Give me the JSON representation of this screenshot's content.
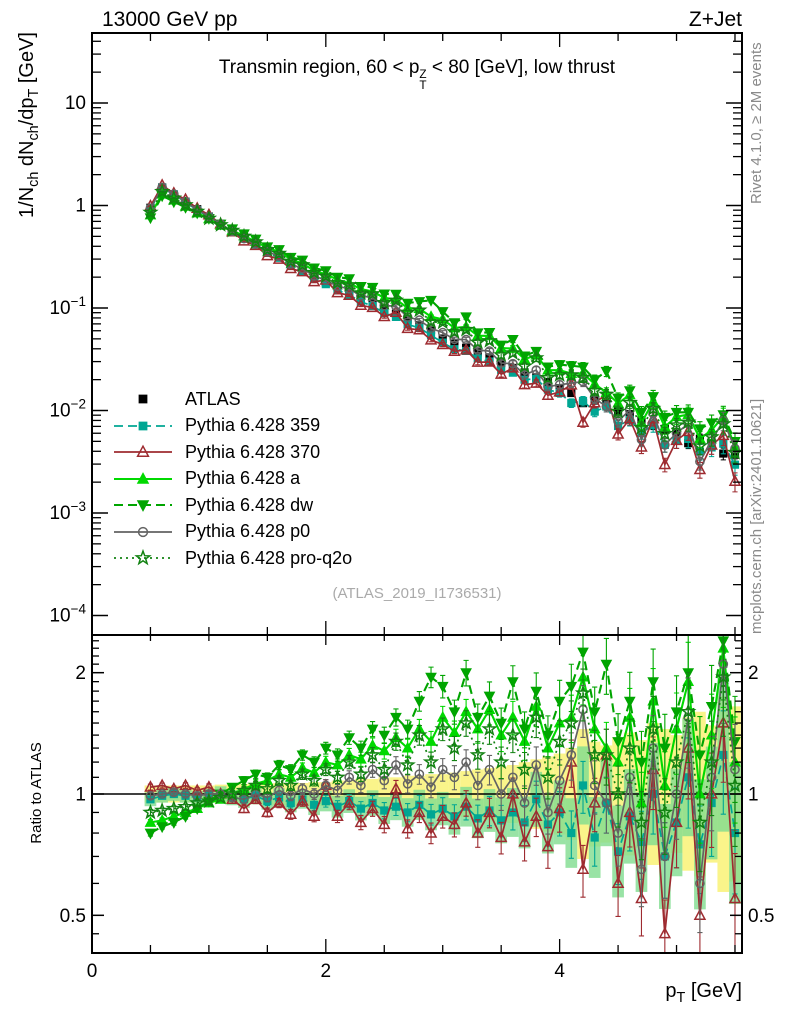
{
  "header": {
    "left": "13000 GeV pp",
    "right": "Z+Jet"
  },
  "title_segments": [
    {
      "t": "Transmin region, 60 < p"
    },
    {
      "stack": [
        "Z",
        "T"
      ]
    },
    {
      "t": " < 80 [GeV], low thrust"
    }
  ],
  "side_notes": {
    "top_right": "Rivet 4.1.0, ≥ 2M events",
    "bottom_right": "mcplots.cern.ch [arXiv:2401.10621]"
  },
  "watermark": "(ATLAS_2019_I1736531)",
  "colors": {
    "frame": "#000000",
    "band_yellow": "#faf48a",
    "band_green": "#7fdc8f",
    "unity_line": "#000000",
    "note_gray": "#8a8a8a",
    "watermark_gray": "#aaaaaa"
  },
  "axes": {
    "x": {
      "label_segments": [
        {
          "t": "p"
        },
        {
          "sub": "T"
        },
        {
          "t": " [GeV]"
        }
      ],
      "range": [
        0,
        5.56
      ],
      "major_ticks": [
        0,
        2,
        4
      ],
      "tick_labels": [
        "0",
        "2",
        "4"
      ],
      "minor_step": 0.5
    },
    "y_main": {
      "label_segments": [
        {
          "t": "1/N"
        },
        {
          "sub": "ch"
        },
        {
          "t": " dN"
        },
        {
          "sub": "ch"
        },
        {
          "t": "/dp"
        },
        {
          "sub": "T"
        },
        {
          "t": " [GeV]"
        }
      ],
      "scale": "log",
      "range": [
        6.5e-05,
        48
      ],
      "tick_labels": [
        {
          "value": 10,
          "text": "10"
        },
        {
          "value": 1,
          "text": "1"
        },
        {
          "value": 0.1,
          "base": "10",
          "exp": "−1"
        },
        {
          "value": 0.01,
          "base": "10",
          "exp": "−2"
        },
        {
          "value": 0.001,
          "base": "10",
          "exp": "−3"
        },
        {
          "value": 0.0001,
          "base": "10",
          "exp": "−4"
        }
      ]
    },
    "y_ratio": {
      "label": "Ratio to ATLAS",
      "scale": "log",
      "range": [
        0.403,
        2.48
      ],
      "major_ticks": [
        0.5,
        1,
        2
      ],
      "tick_labels": [
        "0.5",
        "1",
        "2"
      ]
    }
  },
  "chart_data": {
    "type": "line",
    "title": "Transmin region, 60 < pT^Z < 80 [GeV], low thrust",
    "xlabel": "p_T [GeV]",
    "ylabel": "1/N_ch dN_ch/dp_T [GeV]",
    "x_bin_width": 0.1,
    "x": [
      0.5,
      0.6,
      0.7,
      0.8,
      0.9,
      1.0,
      1.1,
      1.2,
      1.3,
      1.4,
      1.5,
      1.6,
      1.7,
      1.8,
      1.9,
      2.0,
      2.1,
      2.2,
      2.3,
      2.4,
      2.5,
      2.6,
      2.7,
      2.8,
      2.9,
      3.0,
      3.1,
      3.2,
      3.3,
      3.4,
      3.5,
      3.6,
      3.7,
      3.8,
      3.9,
      4.0,
      4.1,
      4.2,
      4.3,
      4.4,
      4.5,
      4.6,
      4.7,
      4.8,
      4.9,
      5.0,
      5.1,
      5.2,
      5.3,
      5.4,
      5.5
    ],
    "atlas": {
      "label": "ATLAS",
      "values": [
        0.95,
        1.5,
        1.28,
        1.09,
        0.92,
        0.78,
        0.66,
        0.57,
        0.49,
        0.42,
        0.36,
        0.315,
        0.272,
        0.235,
        0.205,
        0.178,
        0.16,
        0.14,
        0.125,
        0.11,
        0.098,
        0.088,
        0.077,
        0.068,
        0.061,
        0.05,
        0.045,
        0.041,
        0.037,
        0.033,
        0.029,
        0.026,
        0.0235,
        0.021,
        0.019,
        0.0165,
        0.0148,
        0.0118,
        0.0125,
        0.0115,
        0.0098,
        0.0092,
        0.008,
        0.0072,
        0.0066,
        0.006,
        0.0048,
        0.0053,
        0.0046,
        0.0038,
        0.0037
      ],
      "stat_rel": [
        0.01,
        0.008,
        0.009,
        0.009,
        0.01,
        0.01,
        0.011,
        0.012,
        0.012,
        0.013,
        0.014,
        0.015,
        0.015,
        0.016,
        0.017,
        0.018,
        0.019,
        0.02,
        0.021,
        0.022,
        0.024,
        0.025,
        0.027,
        0.028,
        0.03,
        0.032,
        0.034,
        0.036,
        0.038,
        0.04,
        0.043,
        0.046,
        0.048,
        0.051,
        0.054,
        0.058,
        0.062,
        0.068,
        0.07,
        0.074,
        0.08,
        0.083,
        0.088,
        0.094,
        0.098,
        0.105,
        0.115,
        0.112,
        0.12,
        0.132,
        0.135
      ],
      "band_rel": [
        0.05,
        0.05,
        0.05,
        0.05,
        0.05,
        0.05,
        0.055,
        0.055,
        0.06,
        0.06,
        0.06,
        0.065,
        0.065,
        0.065,
        0.07,
        0.07,
        0.08,
        0.08,
        0.09,
        0.09,
        0.1,
        0.1,
        0.11,
        0.11,
        0.12,
        0.12,
        0.13,
        0.14,
        0.15,
        0.16,
        0.17,
        0.18,
        0.2,
        0.22,
        0.24,
        0.26,
        0.3,
        0.45,
        0.35,
        0.32,
        0.38,
        0.42,
        0.36,
        0.5,
        0.45,
        0.4,
        0.55,
        0.6,
        0.48,
        0.75,
        0.65
      ]
    },
    "mc_stat_rel": [
      0.012,
      0.01,
      0.011,
      0.011,
      0.012,
      0.013,
      0.014,
      0.015,
      0.016,
      0.017,
      0.018,
      0.019,
      0.02,
      0.021,
      0.022,
      0.024,
      0.025,
      0.027,
      0.029,
      0.031,
      0.033,
      0.035,
      0.037,
      0.04,
      0.042,
      0.046,
      0.049,
      0.052,
      0.056,
      0.06,
      0.064,
      0.068,
      0.073,
      0.078,
      0.083,
      0.09,
      0.096,
      0.105,
      0.108,
      0.113,
      0.123,
      0.128,
      0.137,
      0.146,
      0.152,
      0.163,
      0.18,
      0.175,
      0.188,
      0.205,
      0.21
    ],
    "band_359_rel": [
      0.04,
      0.04,
      0.04,
      0.04,
      0.04,
      0.04,
      0.045,
      0.045,
      0.05,
      0.05,
      0.05,
      0.055,
      0.055,
      0.055,
      0.06,
      0.06,
      0.065,
      0.07,
      0.07,
      0.075,
      0.08,
      0.08,
      0.085,
      0.09,
      0.095,
      0.1,
      0.11,
      0.12,
      0.12,
      0.13,
      0.14,
      0.15,
      0.16,
      0.17,
      0.18,
      0.2,
      0.22,
      0.25,
      0.26,
      0.28,
      0.3,
      0.31,
      0.33,
      0.34,
      0.35,
      0.36,
      0.4,
      0.45,
      0.38,
      0.55,
      0.5
    ],
    "series": [
      {
        "id": "atlas",
        "label": "ATLAS",
        "color": "#000000",
        "marker": "square",
        "filled": true,
        "line": "none"
      },
      {
        "id": "p359",
        "label": "Pythia 6.428 359",
        "color": "#00a693",
        "marker": "square",
        "filled": true,
        "line": "dash",
        "ratio": [
          0.97,
          0.99,
          1.0,
          0.99,
          0.98,
          0.99,
          1.0,
          0.98,
          0.97,
          0.99,
          0.96,
          0.98,
          0.95,
          0.97,
          0.94,
          0.96,
          0.93,
          0.96,
          0.92,
          0.95,
          0.91,
          0.93,
          0.9,
          0.94,
          0.89,
          0.92,
          0.88,
          0.93,
          0.87,
          0.91,
          0.86,
          0.9,
          0.85,
          0.97,
          0.84,
          0.9,
          0.8,
          1.05,
          0.78,
          0.95,
          0.72,
          0.88,
          0.76,
          1.0,
          0.7,
          0.85,
          1.1,
          0.75,
          0.95,
          1.25,
          0.8
        ]
      },
      {
        "id": "p370",
        "label": "Pythia 6.428 370",
        "color": "#9e2b30",
        "marker": "triup",
        "filled": false,
        "line": "solid",
        "ratio": [
          1.04,
          1.05,
          1.03,
          1.05,
          1.02,
          1.04,
          1.0,
          0.97,
          0.92,
          0.97,
          0.9,
          0.95,
          0.89,
          0.96,
          0.88,
          1.05,
          0.88,
          0.95,
          0.85,
          0.92,
          0.84,
          1.03,
          0.82,
          0.9,
          0.8,
          0.88,
          0.84,
          0.95,
          0.8,
          0.9,
          0.78,
          1.0,
          0.76,
          0.88,
          0.74,
          0.92,
          1.2,
          0.65,
          0.95,
          1.25,
          0.6,
          0.9,
          0.55,
          1.15,
          0.45,
          0.85,
          1.3,
          0.5,
          1.0,
          1.5,
          0.55
        ]
      },
      {
        "id": "pa",
        "label": "Pythia 6.428 a",
        "color": "#00d900",
        "marker": "triup",
        "filled": true,
        "line": "solid",
        "ratio": [
          0.85,
          0.86,
          0.88,
          0.9,
          0.92,
          0.95,
          0.97,
          1.0,
          1.03,
          1.06,
          1.08,
          1.12,
          1.1,
          1.16,
          1.13,
          1.2,
          1.18,
          1.25,
          1.22,
          1.32,
          1.28,
          1.38,
          1.3,
          1.45,
          1.35,
          1.55,
          1.42,
          1.6,
          1.45,
          1.62,
          1.4,
          1.55,
          1.35,
          1.65,
          1.3,
          1.5,
          1.55,
          1.95,
          1.45,
          1.3,
          1.2,
          1.55,
          0.95,
          1.7,
          1.05,
          1.45,
          1.9,
          1.0,
          1.4,
          2.3,
          1.2
        ]
      },
      {
        "id": "pdw",
        "label": "Pythia 6.428 dw",
        "color": "#00a500",
        "marker": "tridown",
        "filled": true,
        "line": "dash",
        "ratio": [
          0.8,
          0.83,
          0.85,
          0.88,
          0.92,
          0.96,
          1.0,
          1.04,
          1.08,
          1.12,
          1.1,
          1.18,
          1.15,
          1.25,
          1.2,
          1.3,
          1.25,
          1.38,
          1.3,
          1.45,
          1.4,
          1.55,
          1.45,
          1.7,
          1.95,
          1.85,
          1.6,
          2.0,
          1.55,
          1.75,
          1.5,
          1.9,
          1.45,
          1.8,
          1.4,
          1.7,
          1.85,
          2.25,
          1.6,
          2.1,
          1.35,
          1.7,
          1.2,
          1.9,
          1.3,
          1.6,
          2.0,
          1.25,
          1.65,
          2.4,
          1.35
        ]
      },
      {
        "id": "pp0",
        "label": "Pythia 6.428 p0",
        "color": "#636363",
        "marker": "circle",
        "filled": false,
        "line": "solid",
        "ratio": [
          0.99,
          1.0,
          1.01,
          1.0,
          0.99,
          1.0,
          1.0,
          0.98,
          0.97,
          1.0,
          0.98,
          1.02,
          0.99,
          1.03,
          1.0,
          1.05,
          1.02,
          1.1,
          1.05,
          1.15,
          1.08,
          1.18,
          1.06,
          1.12,
          1.04,
          1.15,
          1.1,
          1.2,
          1.05,
          1.15,
          1.0,
          1.1,
          0.95,
          1.18,
          0.9,
          1.08,
          1.25,
          1.62,
          1.05,
          0.95,
          0.8,
          1.1,
          0.65,
          1.3,
          0.7,
          1.0,
          1.55,
          0.6,
          1.1,
          2.1,
          1.15
        ]
      },
      {
        "id": "pq2o",
        "label": "Pythia 6.428 pro-q2o",
        "color": "#128212",
        "marker": "star",
        "filled": false,
        "line": "dot",
        "ratio": [
          0.9,
          0.91,
          0.92,
          0.93,
          0.95,
          0.96,
          0.98,
          1.0,
          1.02,
          1.05,
          1.03,
          1.08,
          1.05,
          1.12,
          1.08,
          1.15,
          1.1,
          1.2,
          1.12,
          1.25,
          1.15,
          1.35,
          1.18,
          1.4,
          1.2,
          1.45,
          1.3,
          1.5,
          1.25,
          1.45,
          1.2,
          1.4,
          1.15,
          1.55,
          1.1,
          1.35,
          1.5,
          1.78,
          1.25,
          1.25,
          1.0,
          1.3,
          0.85,
          1.45,
          0.9,
          1.2,
          1.6,
          0.85,
          1.2,
          1.95,
          1.05
        ]
      }
    ]
  }
}
